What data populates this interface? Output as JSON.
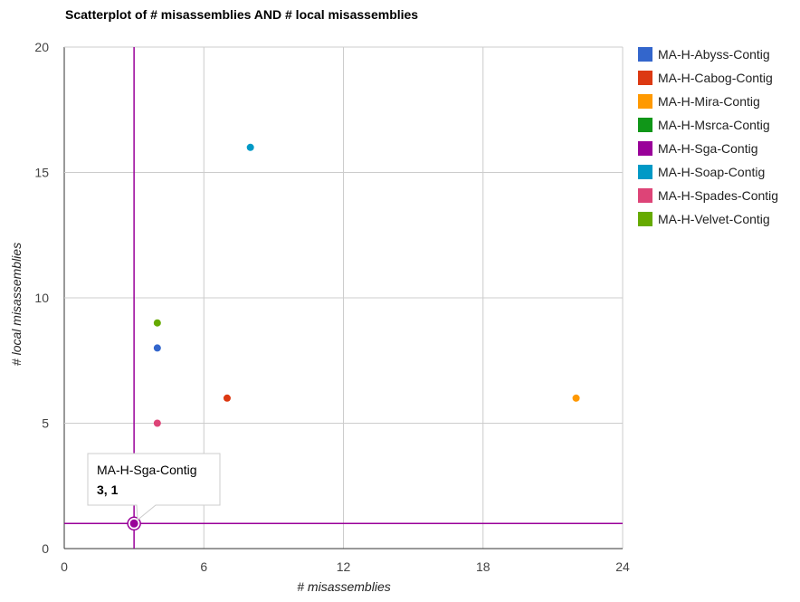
{
  "chart_data": {
    "type": "scatter",
    "title": "Scatterplot of # misassemblies AND # local misassemblies",
    "xlabel": "# misassemblies",
    "ylabel": "# local misassemblies",
    "xlim": [
      0,
      24
    ],
    "ylim": [
      0,
      20
    ],
    "xticks": [
      0,
      6,
      12,
      18,
      24
    ],
    "yticks": [
      0,
      5,
      10,
      15,
      20
    ],
    "grid": true,
    "legend_position": "right",
    "series": [
      {
        "name": "MA-H-Abyss-Contig",
        "color": "#3366cc",
        "x": 4,
        "y": 8
      },
      {
        "name": "MA-H-Cabog-Contig",
        "color": "#dc3912",
        "x": 7,
        "y": 6
      },
      {
        "name": "MA-H-Mira-Contig",
        "color": "#ff9900",
        "x": 22,
        "y": 6
      },
      {
        "name": "MA-H-Msrca-Contig",
        "color": "#109618",
        "x": null,
        "y": null
      },
      {
        "name": "MA-H-Sga-Contig",
        "color": "#990099",
        "x": 3,
        "y": 1
      },
      {
        "name": "MA-H-Soap-Contig",
        "color": "#0099c6",
        "x": 8,
        "y": 16
      },
      {
        "name": "MA-H-Spades-Contig",
        "color": "#dd4477",
        "x": 4,
        "y": 5
      },
      {
        "name": "MA-H-Velvet-Contig",
        "color": "#66aa00",
        "x": 4,
        "y": 9
      }
    ],
    "tooltip": {
      "series": "MA-H-Sga-Contig",
      "label": "MA-H-Sga-Contig",
      "value": "3, 1"
    },
    "crosshair": {
      "x": 3,
      "y": 1,
      "color": "#990099"
    }
  }
}
